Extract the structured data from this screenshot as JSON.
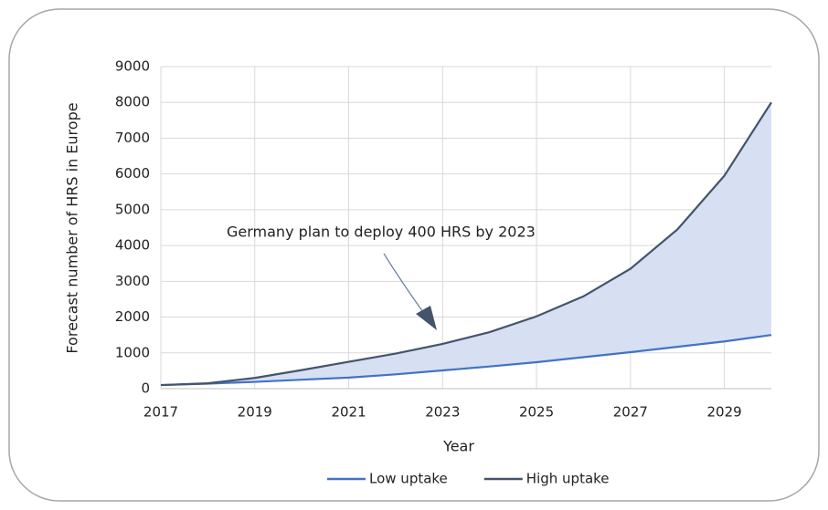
{
  "chart_data": {
    "type": "line",
    "x": [
      2017,
      2018,
      2019,
      2020,
      2021,
      2022,
      2023,
      2024,
      2025,
      2026,
      2027,
      2028,
      2029,
      2030
    ],
    "series": [
      {
        "name": "Low uptake",
        "color": "#4472c4",
        "values": [
          100,
          140,
          190,
          250,
          310,
          400,
          510,
          620,
          740,
          880,
          1020,
          1170,
          1320,
          1500
        ]
      },
      {
        "name": "High uptake",
        "color": "#44546a",
        "values": [
          100,
          150,
          300,
          520,
          750,
          980,
          1250,
          1580,
          2020,
          2580,
          3350,
          4450,
          5950,
          8000
        ]
      }
    ],
    "fill_between_color": "#d6e0f2",
    "xlabel": "Year",
    "ylabel": "Forecast number of HRS in Europe",
    "annotation": "Germany plan to deploy 400 HRS by 2023",
    "xlim": [
      2017,
      2030
    ],
    "xticks": [
      2017,
      2019,
      2021,
      2023,
      2025,
      2027,
      2029
    ],
    "ylim": [
      0,
      9000
    ],
    "yticks": [
      0,
      1000,
      2000,
      3000,
      4000,
      5000,
      6000,
      7000,
      8000,
      9000
    ],
    "grid": true,
    "legend": "bottom"
  }
}
